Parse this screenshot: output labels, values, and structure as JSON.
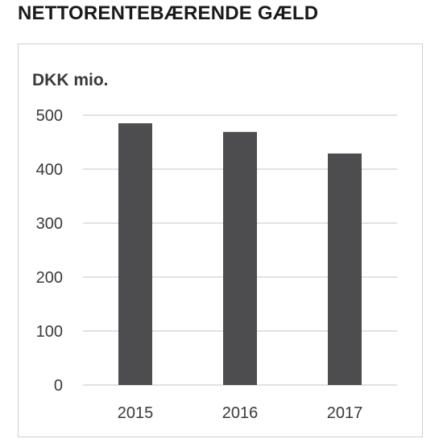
{
  "heading": "NETTORENTEBÆRENDE GÆLD",
  "chart_data": {
    "type": "bar",
    "title": "",
    "unit_label": "DKK mio.",
    "xlabel": "",
    "ylabel": "",
    "categories": [
      "2015",
      "2016",
      "2017"
    ],
    "values": [
      485,
      469,
      429
    ],
    "ylim": [
      0,
      500
    ],
    "yticks": [
      0,
      100,
      200,
      300,
      400,
      500
    ],
    "grid": true,
    "legend": "none",
    "colors": {
      "bar": "#4d4d4f",
      "grid": "#d9d9d9",
      "text": "#3a3a3a"
    }
  }
}
